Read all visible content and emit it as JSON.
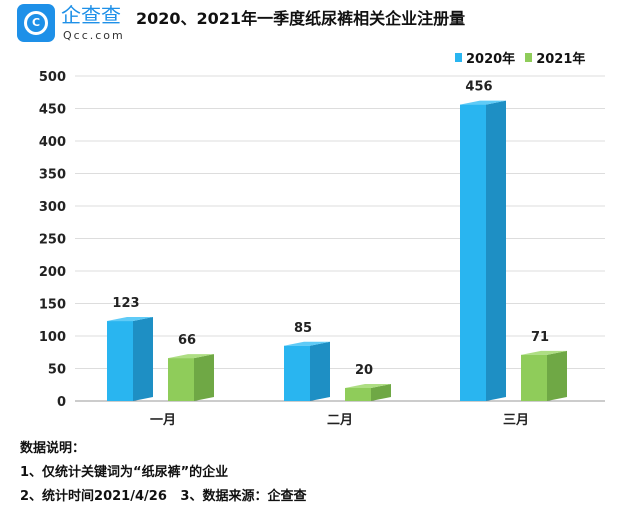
{
  "brand": {
    "name": "企查查",
    "domain": "Qcc.com"
  },
  "chart_data": {
    "type": "bar",
    "title": "2020、2021年一季度纸尿裤相关企业注册量",
    "categories": [
      "一月",
      "二月",
      "三月"
    ],
    "series": [
      {
        "name": "2020年",
        "values": [
          123,
          85,
          456
        ],
        "color": "#29b5f0"
      },
      {
        "name": "2021年",
        "values": [
          66,
          20,
          71
        ],
        "color": "#8fcc5a"
      }
    ],
    "yticks": [
      0,
      50,
      100,
      150,
      200,
      250,
      300,
      350,
      400,
      450,
      500
    ],
    "ylim": [
      0,
      500
    ],
    "grid": true,
    "legend": "top-right",
    "xlabel": "",
    "ylabel": ""
  },
  "notes": {
    "heading": "数据说明：",
    "line1": "1、仅统计关键词为“纸尿裤”的企业",
    "line2": "2、统计时间2021/4/26   3、数据来源：企查查"
  }
}
